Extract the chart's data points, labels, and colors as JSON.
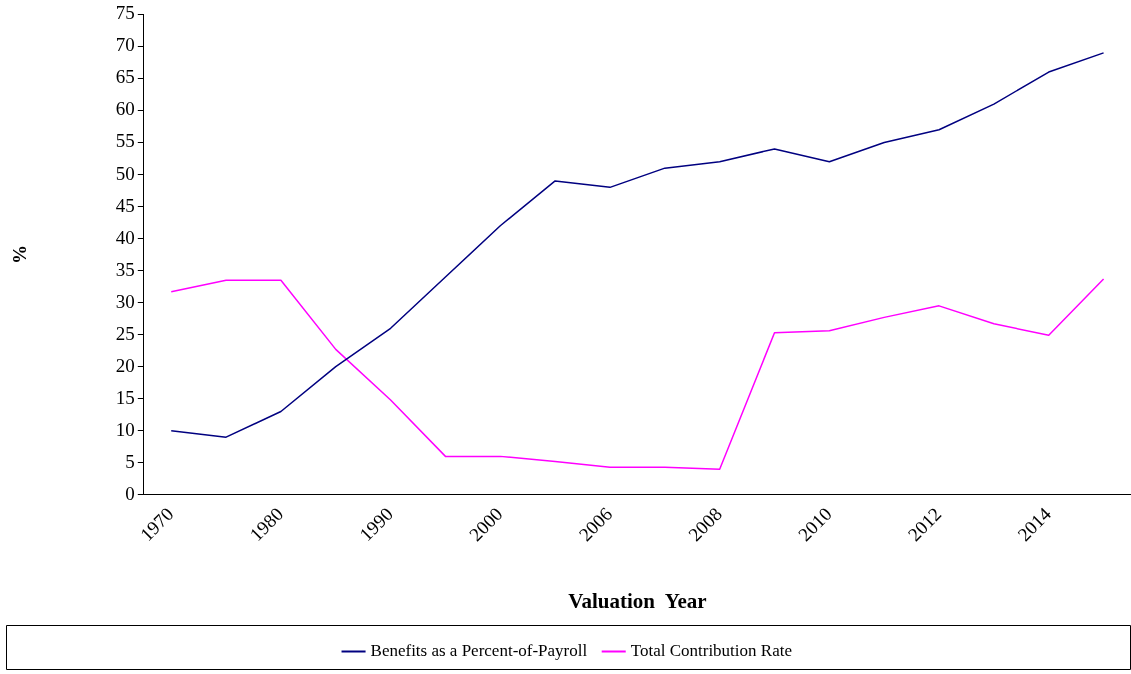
{
  "chart_data": {
    "type": "line",
    "xlabel": "Valuation  Year",
    "ylabel": "%",
    "categories": [
      "1970",
      null,
      "1980",
      null,
      "1990",
      null,
      "2000",
      null,
      "2006",
      null,
      "2008",
      null,
      "2010",
      null,
      "2012",
      null,
      "2014",
      null
    ],
    "series": [
      {
        "name": "Benefits as a Percent-of-Payroll",
        "color": "#000080",
        "values": [
          10,
          9,
          13,
          20,
          26,
          34,
          42,
          49,
          48,
          51,
          52,
          54,
          52,
          55,
          57,
          61,
          66,
          69
        ]
      },
      {
        "name": "Total Contribution Rate",
        "color": "#ff00ff",
        "values": [
          31.7,
          33.5,
          33.5,
          22.7,
          14.8,
          6,
          6,
          5.2,
          4.3,
          4.3,
          4,
          25.3,
          25.6,
          27.7,
          29.5,
          26.7,
          24.9,
          33.7
        ]
      }
    ],
    "ylim": [
      0,
      75
    ],
    "yticks": [
      0,
      5,
      10,
      15,
      20,
      25,
      30,
      35,
      40,
      45,
      50,
      55,
      60,
      65,
      70,
      75
    ],
    "grid": false,
    "legend": "bottom",
    "marker": "none",
    "line_style": "solid"
  }
}
